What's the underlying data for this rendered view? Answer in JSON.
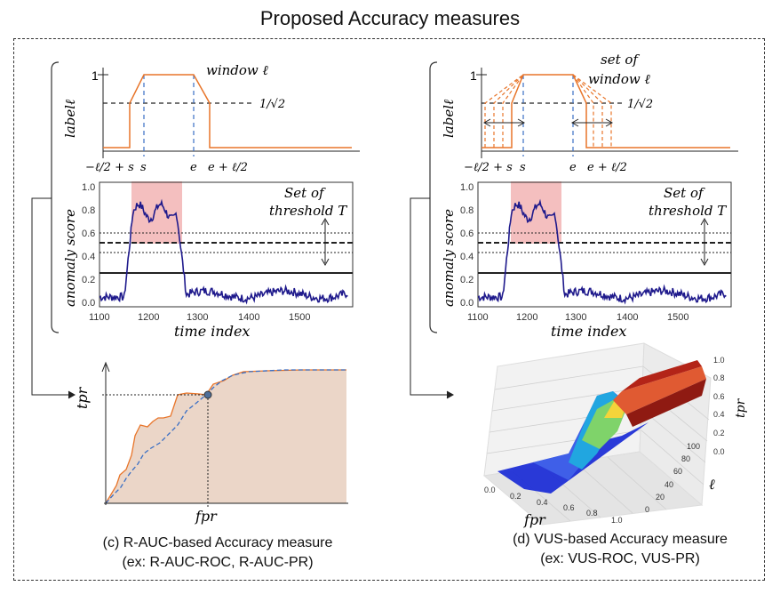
{
  "title": "Proposed Accuracy measures",
  "left": {
    "window_label": "window ℓ",
    "y_label_top": "labelℓ",
    "y_label_bottom": "anomaly score",
    "x_label_bottom": "time index",
    "threshold_label_1": "Set of",
    "threshold_label_2": "threshold T",
    "sqrt_label": "1/√2",
    "tick_one": "1",
    "top_xticks": [
      "−ℓ/2 + s",
      "s",
      "e",
      "e + ℓ/2"
    ],
    "yticks": [
      "1.0",
      "0.8",
      "0.6",
      "0.4",
      "0.2",
      "0.0"
    ],
    "xticks": [
      "1100",
      "1200",
      "1300",
      "1400",
      "1500"
    ],
    "caption_line1": "(c) R-AUC-based Accuracy measure",
    "caption_line2": "(ex: R-AUC-ROC, R-AUC-PR)",
    "roc_ylabel": "tpr",
    "roc_xlabel": "fpr"
  },
  "right": {
    "window_label_1": "set of",
    "window_label_2": "window ℓ",
    "y_label_top": "labelℓ",
    "y_label_bottom": "anomaly score",
    "x_label_bottom": "time index",
    "threshold_label_1": "Set of",
    "threshold_label_2": "threshold T",
    "sqrt_label": "1/√2",
    "tick_one": "1",
    "top_xticks": [
      "−ℓ/2 + s",
      "s",
      "e",
      "e + ℓ/2"
    ],
    "yticks": [
      "1.0",
      "0.8",
      "0.6",
      "0.4",
      "0.2",
      "0.0"
    ],
    "xticks": [
      "1100",
      "1200",
      "1300",
      "1400",
      "1500"
    ],
    "caption_line1": "(d) VUS-based Accuracy measure",
    "caption_line2": "(ex: VUS-ROC, VUS-PR)",
    "surf_fpr_label": "fpr",
    "surf_l_label": "ℓ",
    "surf_tpr_label": "tpr",
    "surf_fpr_ticks": [
      "0.0",
      "0.2",
      "0.4",
      "0.6",
      "0.8",
      "1.0"
    ],
    "surf_l_ticks": [
      "0",
      "20",
      "40",
      "60",
      "80",
      "100"
    ],
    "surf_tpr_ticks": [
      "0.0",
      "0.2",
      "0.4",
      "0.6",
      "0.8",
      "1.0"
    ]
  },
  "colors": {
    "orange": "#e8752a",
    "blue_dash": "#3a6fc4",
    "score": "#1f1a8c",
    "anomaly_fill": "#f2b4b4",
    "roc_fill": "#e9d2c2"
  }
}
